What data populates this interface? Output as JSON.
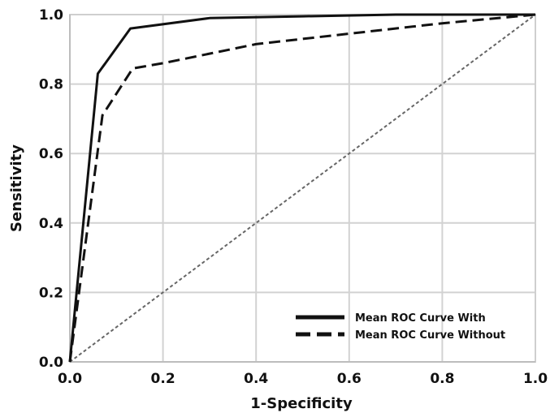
{
  "chart_data": {
    "type": "line",
    "title": "",
    "xlabel": "1-Specificity",
    "ylabel": "Sensitivity",
    "xlim": [
      0,
      1
    ],
    "ylim": [
      0,
      1
    ],
    "x_ticks": [
      "0.0",
      "0.2",
      "0.4",
      "0.6",
      "0.8",
      "1.0"
    ],
    "y_ticks": [
      "0.0",
      "0.2",
      "0.4",
      "0.6",
      "0.8",
      "1.0"
    ],
    "grid": true,
    "legend_position": "bottom-right",
    "series": [
      {
        "name": "Mean ROC Curve With",
        "style": "solid",
        "color": "#111111",
        "points": [
          [
            0.0,
            0.0
          ],
          [
            0.06,
            0.83
          ],
          [
            0.13,
            0.96
          ],
          [
            0.3,
            0.99
          ],
          [
            0.5,
            0.995
          ],
          [
            0.7,
            1.0
          ],
          [
            1.0,
            1.0
          ]
        ]
      },
      {
        "name": "Mean ROC Curve Without",
        "style": "dashed",
        "color": "#111111",
        "points": [
          [
            0.0,
            0.0
          ],
          [
            0.07,
            0.71
          ],
          [
            0.135,
            0.845
          ],
          [
            0.2,
            0.86
          ],
          [
            0.4,
            0.915
          ],
          [
            0.6,
            0.945
          ],
          [
            0.8,
            0.975
          ],
          [
            1.0,
            1.0
          ]
        ]
      },
      {
        "style": "dotted",
        "color": "#666666",
        "points": [
          [
            0.0,
            0.0
          ],
          [
            1.0,
            1.0
          ]
        ]
      }
    ]
  }
}
